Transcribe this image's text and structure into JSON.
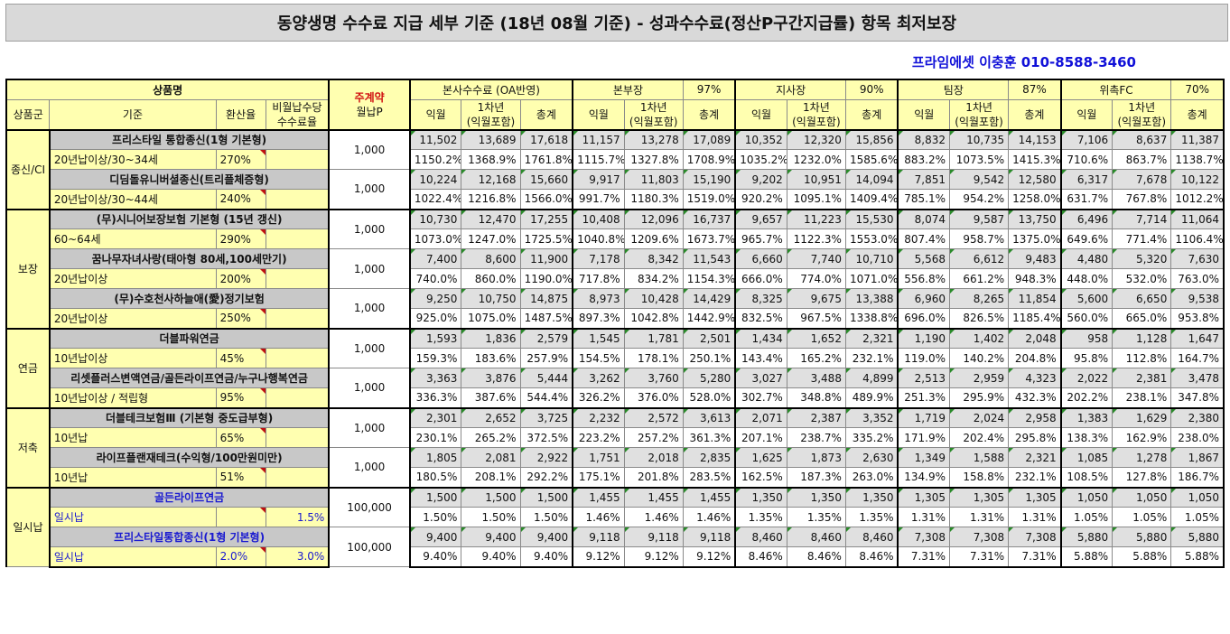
{
  "title": "동양생명 수수료 지급 세부 기준 (18년 08월 기준) - 성과수수료(정산P구간지급률) 항목 최저보장",
  "contact": "프라임에셋 이충훈 010-8588-3460",
  "headers": {
    "product_name": "상품명",
    "main_contract": "주계약",
    "monthly_premium": "월납P",
    "hq_fee": "본사수수료 (OA반영)",
    "ranks": [
      {
        "name": "본부장",
        "pct": "97%"
      },
      {
        "name": "지사장",
        "pct": "90%"
      },
      {
        "name": "팀장",
        "pct": "87%"
      },
      {
        "name": "위촉FC",
        "pct": "70%"
      }
    ],
    "product_group": "상품군",
    "criteria": "기준",
    "conversion_rate": "환산율",
    "non_monthly": "비월납수당\n수수료율",
    "col_month": "익월",
    "col_year1": "1차년\n(익월포함)",
    "col_total": "총계"
  },
  "groups": [
    {
      "name": "종신/CI",
      "products": [
        {
          "name": "프리스타일 통합종신(1형 기본형)",
          "criteria": "20년납이상/30~34세",
          "rate": "270%",
          "extra": "",
          "premium": "1,000",
          "blue": false,
          "nums": [
            "11,502",
            "13,689",
            "17,618",
            "11,157",
            "13,278",
            "17,089",
            "10,352",
            "12,320",
            "15,856",
            "8,832",
            "10,735",
            "14,153",
            "7,106",
            "8,637",
            "11,387"
          ],
          "pcts": [
            "1150.2%",
            "1368.9%",
            "1761.8%",
            "1115.7%",
            "1327.8%",
            "1708.9%",
            "1035.2%",
            "1232.0%",
            "1585.6%",
            "883.2%",
            "1073.5%",
            "1415.3%",
            "710.6%",
            "863.7%",
            "1138.7%"
          ]
        },
        {
          "name": "디딤돌유니버셜종신(트리플체증형)",
          "criteria": "20년납이상/30~44세",
          "rate": "240%",
          "extra": "",
          "premium": "1,000",
          "blue": false,
          "nums": [
            "10,224",
            "12,168",
            "15,660",
            "9,917",
            "11,803",
            "15,190",
            "9,202",
            "10,951",
            "14,094",
            "7,851",
            "9,542",
            "12,580",
            "6,317",
            "7,678",
            "10,122"
          ],
          "pcts": [
            "1022.4%",
            "1216.8%",
            "1566.0%",
            "991.7%",
            "1180.3%",
            "1519.0%",
            "920.2%",
            "1095.1%",
            "1409.4%",
            "785.1%",
            "954.2%",
            "1258.0%",
            "631.7%",
            "767.8%",
            "1012.2%"
          ]
        }
      ]
    },
    {
      "name": "보장",
      "products": [
        {
          "name": "(무)시니어보장보험 기본형 (15년 갱신)",
          "criteria": "60~64세",
          "rate": "290%",
          "extra": "",
          "premium": "1,000",
          "blue": false,
          "nums": [
            "10,730",
            "12,470",
            "17,255",
            "10,408",
            "12,096",
            "16,737",
            "9,657",
            "11,223",
            "15,530",
            "8,074",
            "9,587",
            "13,750",
            "6,496",
            "7,714",
            "11,064"
          ],
          "pcts": [
            "1073.0%",
            "1247.0%",
            "1725.5%",
            "1040.8%",
            "1209.6%",
            "1673.7%",
            "965.7%",
            "1122.3%",
            "1553.0%",
            "807.4%",
            "958.7%",
            "1375.0%",
            "649.6%",
            "771.4%",
            "1106.4%"
          ]
        },
        {
          "name": "꿈나무자녀사랑(태아형 80세,100세만기)",
          "criteria": "20년납이상",
          "rate": "200%",
          "extra": "",
          "premium": "1,000",
          "blue": false,
          "nums": [
            "7,400",
            "8,600",
            "11,900",
            "7,178",
            "8,342",
            "11,543",
            "6,660",
            "7,740",
            "10,710",
            "5,568",
            "6,612",
            "9,483",
            "4,480",
            "5,320",
            "7,630"
          ],
          "pcts": [
            "740.0%",
            "860.0%",
            "1190.0%",
            "717.8%",
            "834.2%",
            "1154.3%",
            "666.0%",
            "774.0%",
            "1071.0%",
            "556.8%",
            "661.2%",
            "948.3%",
            "448.0%",
            "532.0%",
            "763.0%"
          ]
        },
        {
          "name": "(무)수호천사하늘애(愛)정기보험",
          "criteria": "20년납이상",
          "rate": "250%",
          "extra": "",
          "premium": "1,000",
          "blue": false,
          "nums": [
            "9,250",
            "10,750",
            "14,875",
            "8,973",
            "10,428",
            "14,429",
            "8,325",
            "9,675",
            "13,388",
            "6,960",
            "8,265",
            "11,854",
            "5,600",
            "6,650",
            "9,538"
          ],
          "pcts": [
            "925.0%",
            "1075.0%",
            "1487.5%",
            "897.3%",
            "1042.8%",
            "1442.9%",
            "832.5%",
            "967.5%",
            "1338.8%",
            "696.0%",
            "826.5%",
            "1185.4%",
            "560.0%",
            "665.0%",
            "953.8%"
          ]
        }
      ]
    },
    {
      "name": "연금",
      "products": [
        {
          "name": "더블파워연금",
          "criteria": "10년납이상",
          "rate": "45%",
          "extra": "",
          "premium": "1,000",
          "blue": false,
          "nums": [
            "1,593",
            "1,836",
            "2,579",
            "1,545",
            "1,781",
            "2,501",
            "1,434",
            "1,652",
            "2,321",
            "1,190",
            "1,402",
            "2,048",
            "958",
            "1,128",
            "1,647"
          ],
          "pcts": [
            "159.3%",
            "183.6%",
            "257.9%",
            "154.5%",
            "178.1%",
            "250.1%",
            "143.4%",
            "165.2%",
            "232.1%",
            "119.0%",
            "140.2%",
            "204.8%",
            "95.8%",
            "112.8%",
            "164.7%"
          ]
        },
        {
          "name": "리셋플러스변액연금/골든라이프연금/누구나행복연금",
          "criteria": "10년납이상 / 적립형",
          "rate": "95%",
          "extra": "",
          "premium": "1,000",
          "blue": false,
          "nums": [
            "3,363",
            "3,876",
            "5,444",
            "3,262",
            "3,760",
            "5,280",
            "3,027",
            "3,488",
            "4,899",
            "2,513",
            "2,959",
            "4,323",
            "2,022",
            "2,381",
            "3,478"
          ],
          "pcts": [
            "336.3%",
            "387.6%",
            "544.4%",
            "326.2%",
            "376.0%",
            "528.0%",
            "302.7%",
            "348.8%",
            "489.9%",
            "251.3%",
            "295.9%",
            "432.3%",
            "202.2%",
            "238.1%",
            "347.8%"
          ]
        }
      ]
    },
    {
      "name": "저축",
      "products": [
        {
          "name": "더블테크보험Ⅲ (기본형 중도급부형)",
          "criteria": "10년납",
          "rate": "65%",
          "extra": "",
          "premium": "1,000",
          "blue": false,
          "nums": [
            "2,301",
            "2,652",
            "3,725",
            "2,232",
            "2,572",
            "3,613",
            "2,071",
            "2,387",
            "3,352",
            "1,719",
            "2,024",
            "2,958",
            "1,383",
            "1,629",
            "2,380"
          ],
          "pcts": [
            "230.1%",
            "265.2%",
            "372.5%",
            "223.2%",
            "257.2%",
            "361.3%",
            "207.1%",
            "238.7%",
            "335.2%",
            "171.9%",
            "202.4%",
            "295.8%",
            "138.3%",
            "162.9%",
            "238.0%"
          ]
        },
        {
          "name": "라이프플랜재테크(수익형/100만원미만)",
          "criteria": "10년납",
          "rate": "51%",
          "extra": "",
          "premium": "1,000",
          "blue": false,
          "nums": [
            "1,805",
            "2,081",
            "2,922",
            "1,751",
            "2,018",
            "2,835",
            "1,625",
            "1,873",
            "2,630",
            "1,349",
            "1,588",
            "2,321",
            "1,085",
            "1,278",
            "1,867"
          ],
          "pcts": [
            "180.5%",
            "208.1%",
            "292.2%",
            "175.1%",
            "201.8%",
            "283.5%",
            "162.5%",
            "187.3%",
            "263.0%",
            "134.9%",
            "158.8%",
            "232.1%",
            "108.5%",
            "127.8%",
            "186.7%"
          ]
        }
      ]
    },
    {
      "name": "일시납",
      "products": [
        {
          "name": "골든라이프연금",
          "criteria": "일시납",
          "rate": "",
          "extra": "1.5%",
          "premium": "100,000",
          "blue": true,
          "nums": [
            "1,500",
            "1,500",
            "1,500",
            "1,455",
            "1,455",
            "1,455",
            "1,350",
            "1,350",
            "1,350",
            "1,305",
            "1,305",
            "1,305",
            "1,050",
            "1,050",
            "1,050"
          ],
          "pcts": [
            "1.50%",
            "1.50%",
            "1.50%",
            "1.46%",
            "1.46%",
            "1.46%",
            "1.35%",
            "1.35%",
            "1.35%",
            "1.31%",
            "1.31%",
            "1.31%",
            "1.05%",
            "1.05%",
            "1.05%"
          ]
        },
        {
          "name": "프리스타일통합종신(1형 기본형)",
          "criteria": "일시납",
          "rate": "2.0%",
          "extra": "3.0%",
          "premium": "100,000",
          "blue": true,
          "nums": [
            "9,400",
            "9,400",
            "9,400",
            "9,118",
            "9,118",
            "9,118",
            "8,460",
            "8,460",
            "8,460",
            "7,308",
            "7,308",
            "7,308",
            "5,880",
            "5,880",
            "5,880"
          ],
          "pcts": [
            "9.40%",
            "9.40%",
            "9.40%",
            "9.12%",
            "9.12%",
            "9.12%",
            "8.46%",
            "8.46%",
            "8.46%",
            "7.31%",
            "7.31%",
            "7.31%",
            "5.88%",
            "5.88%",
            "5.88%"
          ]
        }
      ]
    }
  ]
}
